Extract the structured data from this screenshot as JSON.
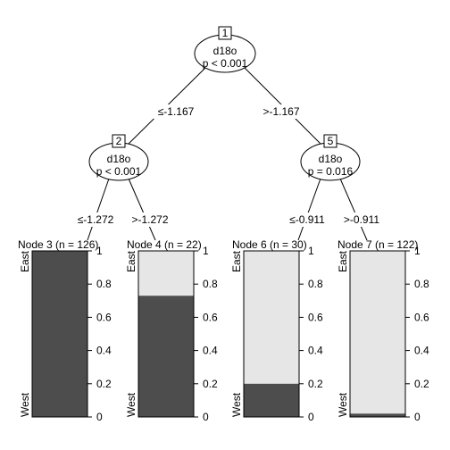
{
  "colors": {
    "east": "#e6e6e6",
    "west": "#4d4d4d",
    "line": "#000000"
  },
  "inner_nodes": [
    {
      "id": "1",
      "variable": "d18o",
      "pvalue": "p < 0.001"
    },
    {
      "id": "2",
      "variable": "d18o",
      "pvalue": "p < 0.001"
    },
    {
      "id": "5",
      "variable": "d18o",
      "pvalue": "p = 0.016"
    }
  ],
  "edges": [
    {
      "from": "1",
      "to": "2",
      "label": "≤-1.167"
    },
    {
      "from": "1",
      "to": "5",
      "label": ">-1.167"
    },
    {
      "from": "2",
      "to": "3",
      "label": "≤-1.272"
    },
    {
      "from": "2",
      "to": "4",
      "label": ">-1.272"
    },
    {
      "from": "5",
      "to": "6",
      "label": "≤-0.911"
    },
    {
      "from": "5",
      "to": "7",
      "label": ">-0.911"
    }
  ],
  "terminal_nodes": [
    {
      "id": "3",
      "label": "Node 3 (n = 126)",
      "west_fraction": 1.0
    },
    {
      "id": "4",
      "label": "Node 4 (n = 22)",
      "west_fraction": 0.73
    },
    {
      "id": "6",
      "label": "Node 6 (n = 30)",
      "west_fraction": 0.2
    },
    {
      "id": "7",
      "label": "Node 7 (n = 122)",
      "west_fraction": 0.02
    }
  ],
  "class_labels": {
    "top": "East",
    "bottom": "West"
  },
  "axis_ticks": [
    "0",
    "0.2",
    "0.4",
    "0.6",
    "0.8",
    "1"
  ]
}
